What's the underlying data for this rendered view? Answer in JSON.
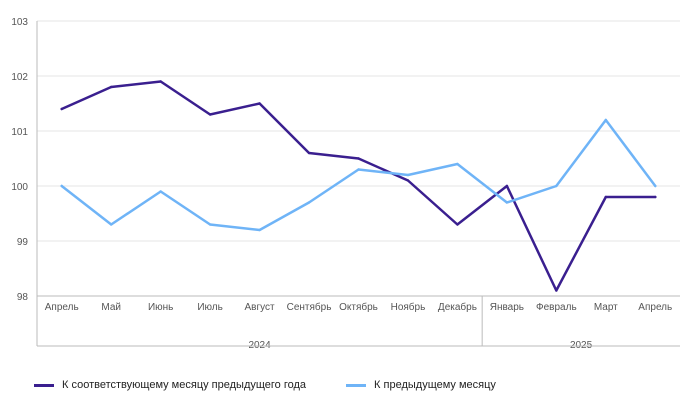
{
  "chart_data": {
    "type": "line",
    "x": [
      "Апрель",
      "Май",
      "Июнь",
      "Июль",
      "Август",
      "Сентябрь",
      "Октябрь",
      "Ноябрь",
      "Декабрь",
      "Январь",
      "Февраль",
      "Март",
      "Апрель"
    ],
    "year_groups": [
      {
        "label": "2024",
        "start": 0,
        "end": 8
      },
      {
        "label": "2025",
        "start": 9,
        "end": 12
      }
    ],
    "series": [
      {
        "name": "К соответствующему месяцу предыдущего года",
        "color": "#3a1f8f",
        "values": [
          101.4,
          101.8,
          101.9,
          101.3,
          101.5,
          100.6,
          100.5,
          100.1,
          99.3,
          100.0,
          98.1,
          99.8,
          99.8
        ]
      },
      {
        "name": "К предыдущему месяцу",
        "color": "#6fb4f7",
        "values": [
          100.0,
          99.3,
          99.9,
          99.3,
          99.2,
          99.7,
          100.3,
          100.2,
          100.4,
          99.7,
          100.0,
          101.2,
          100.0
        ]
      }
    ],
    "ylim": [
      98,
      103
    ],
    "yticks": [
      "98",
      "99",
      "100",
      "101",
      "102",
      "103"
    ],
    "grid": true,
    "legend_position": "bottom-left"
  }
}
